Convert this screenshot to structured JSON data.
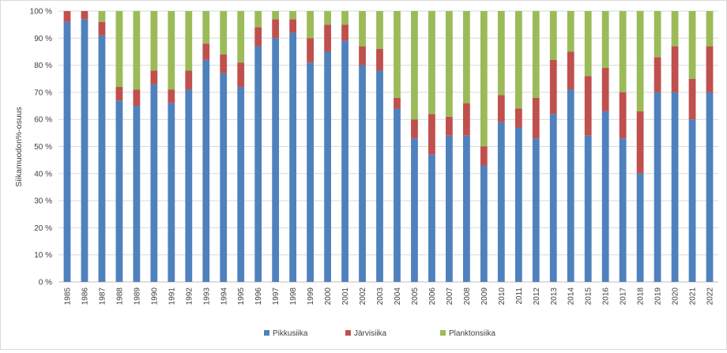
{
  "chart_data": {
    "type": "bar",
    "stacked": true,
    "title": "",
    "xlabel": "",
    "ylabel": "Siikamuodon%-osuus",
    "ylim": [
      0,
      100
    ],
    "yticks": [
      "0 %",
      "10 %",
      "20 %",
      "30 %",
      "40 %",
      "50 %",
      "60 %",
      "70 %",
      "80 %",
      "90 %",
      "100 %"
    ],
    "grid": true,
    "legend_position": "bottom",
    "categories": [
      "1985",
      "1986",
      "1987",
      "1988",
      "1989",
      "1990",
      "1991",
      "1992",
      "1993",
      "1994",
      "1995",
      "1996",
      "1997",
      "1998",
      "1999",
      "2000",
      "2001",
      "2002",
      "2003",
      "2004",
      "2005",
      "2006",
      "2007",
      "2008",
      "2009",
      "2010",
      "2011",
      "2012",
      "2013",
      "2014",
      "2015",
      "2016",
      "2017",
      "2018",
      "2019",
      "2020",
      "2021",
      "2022"
    ],
    "series": [
      {
        "name": "Pikkusiika",
        "color": "#4f81bd",
        "values": [
          96,
          97,
          91,
          67,
          65,
          73,
          66,
          71,
          82,
          77,
          72,
          87,
          90,
          92,
          81,
          85,
          89,
          80,
          78,
          64,
          53,
          47,
          54,
          54,
          43,
          59,
          57,
          53,
          62,
          71,
          54,
          63,
          53,
          40,
          70,
          70,
          60,
          70
        ]
      },
      {
        "name": "Järvisiika",
        "color": "#c0504d",
        "values": [
          4,
          3,
          5,
          5,
          6,
          5,
          5,
          7,
          6,
          7,
          9,
          7,
          7,
          5,
          9,
          10,
          6,
          7,
          8,
          4,
          7,
          15,
          7,
          12,
          7,
          10,
          7,
          15,
          20,
          14,
          22,
          16,
          17,
          23,
          13,
          17,
          15,
          17
        ]
      },
      {
        "name": "Planktonsiika",
        "color": "#9bbb59",
        "values": [
          0,
          0,
          4,
          28,
          29,
          22,
          29,
          22,
          12,
          16,
          19,
          6,
          3,
          3,
          10,
          5,
          5,
          13,
          14,
          32,
          40,
          38,
          39,
          34,
          50,
          31,
          36,
          32,
          18,
          15,
          24,
          21,
          30,
          37,
          17,
          13,
          25,
          13
        ]
      }
    ]
  }
}
